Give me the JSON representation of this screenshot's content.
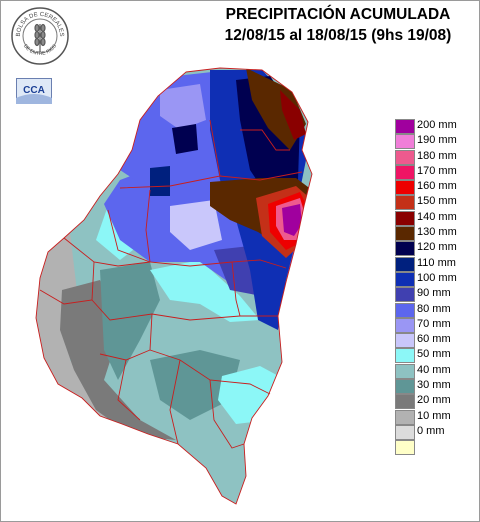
{
  "header": {
    "title_line1": "PRECIPITACIÓN ACUMULADA",
    "title_line2": "12/08/15 al 18/08/15 (9hs 19/08)"
  },
  "logo": {
    "text_top": "BOLSA DE CEREALES",
    "text_bottom": "DE ENTRE RIOS",
    "badge_text": "CCA"
  },
  "legend": {
    "items": [
      {
        "label": "200 mm",
        "color": "#a0009e"
      },
      {
        "label": "190 mm",
        "color": "#f07ed8"
      },
      {
        "label": "180 mm",
        "color": "#ee5a8e"
      },
      {
        "label": "170 mm",
        "color": "#ef1464"
      },
      {
        "label": "160 mm",
        "color": "#ee0000"
      },
      {
        "label": "150 mm",
        "color": "#c43018"
      },
      {
        "label": "140 mm",
        "color": "#8a0000"
      },
      {
        "label": "130 mm",
        "color": "#5a2800"
      },
      {
        "label": "120 mm",
        "color": "#000050"
      },
      {
        "label": "110 mm",
        "color": "#00207e"
      },
      {
        "label": "100 mm",
        "color": "#0f2fb4"
      },
      {
        "label": "90 mm",
        "color": "#4040b0"
      },
      {
        "label": "80 mm",
        "color": "#5c66ee"
      },
      {
        "label": "70 mm",
        "color": "#9a96f4"
      },
      {
        "label": "60 mm",
        "color": "#c9c7fb"
      },
      {
        "label": "50 mm",
        "color": "#8cf7f7"
      },
      {
        "label": "40 mm",
        "color": "#8ec2c2"
      },
      {
        "label": "30 mm",
        "color": "#5f9696"
      },
      {
        "label": "20 mm",
        "color": "#7a7a7a"
      },
      {
        "label": "10 mm",
        "color": "#b2b2b2"
      },
      {
        "label": "0 mm",
        "color": "#dcdcdc"
      },
      {
        "label": "",
        "color": "#ffffc8"
      }
    ]
  }
}
